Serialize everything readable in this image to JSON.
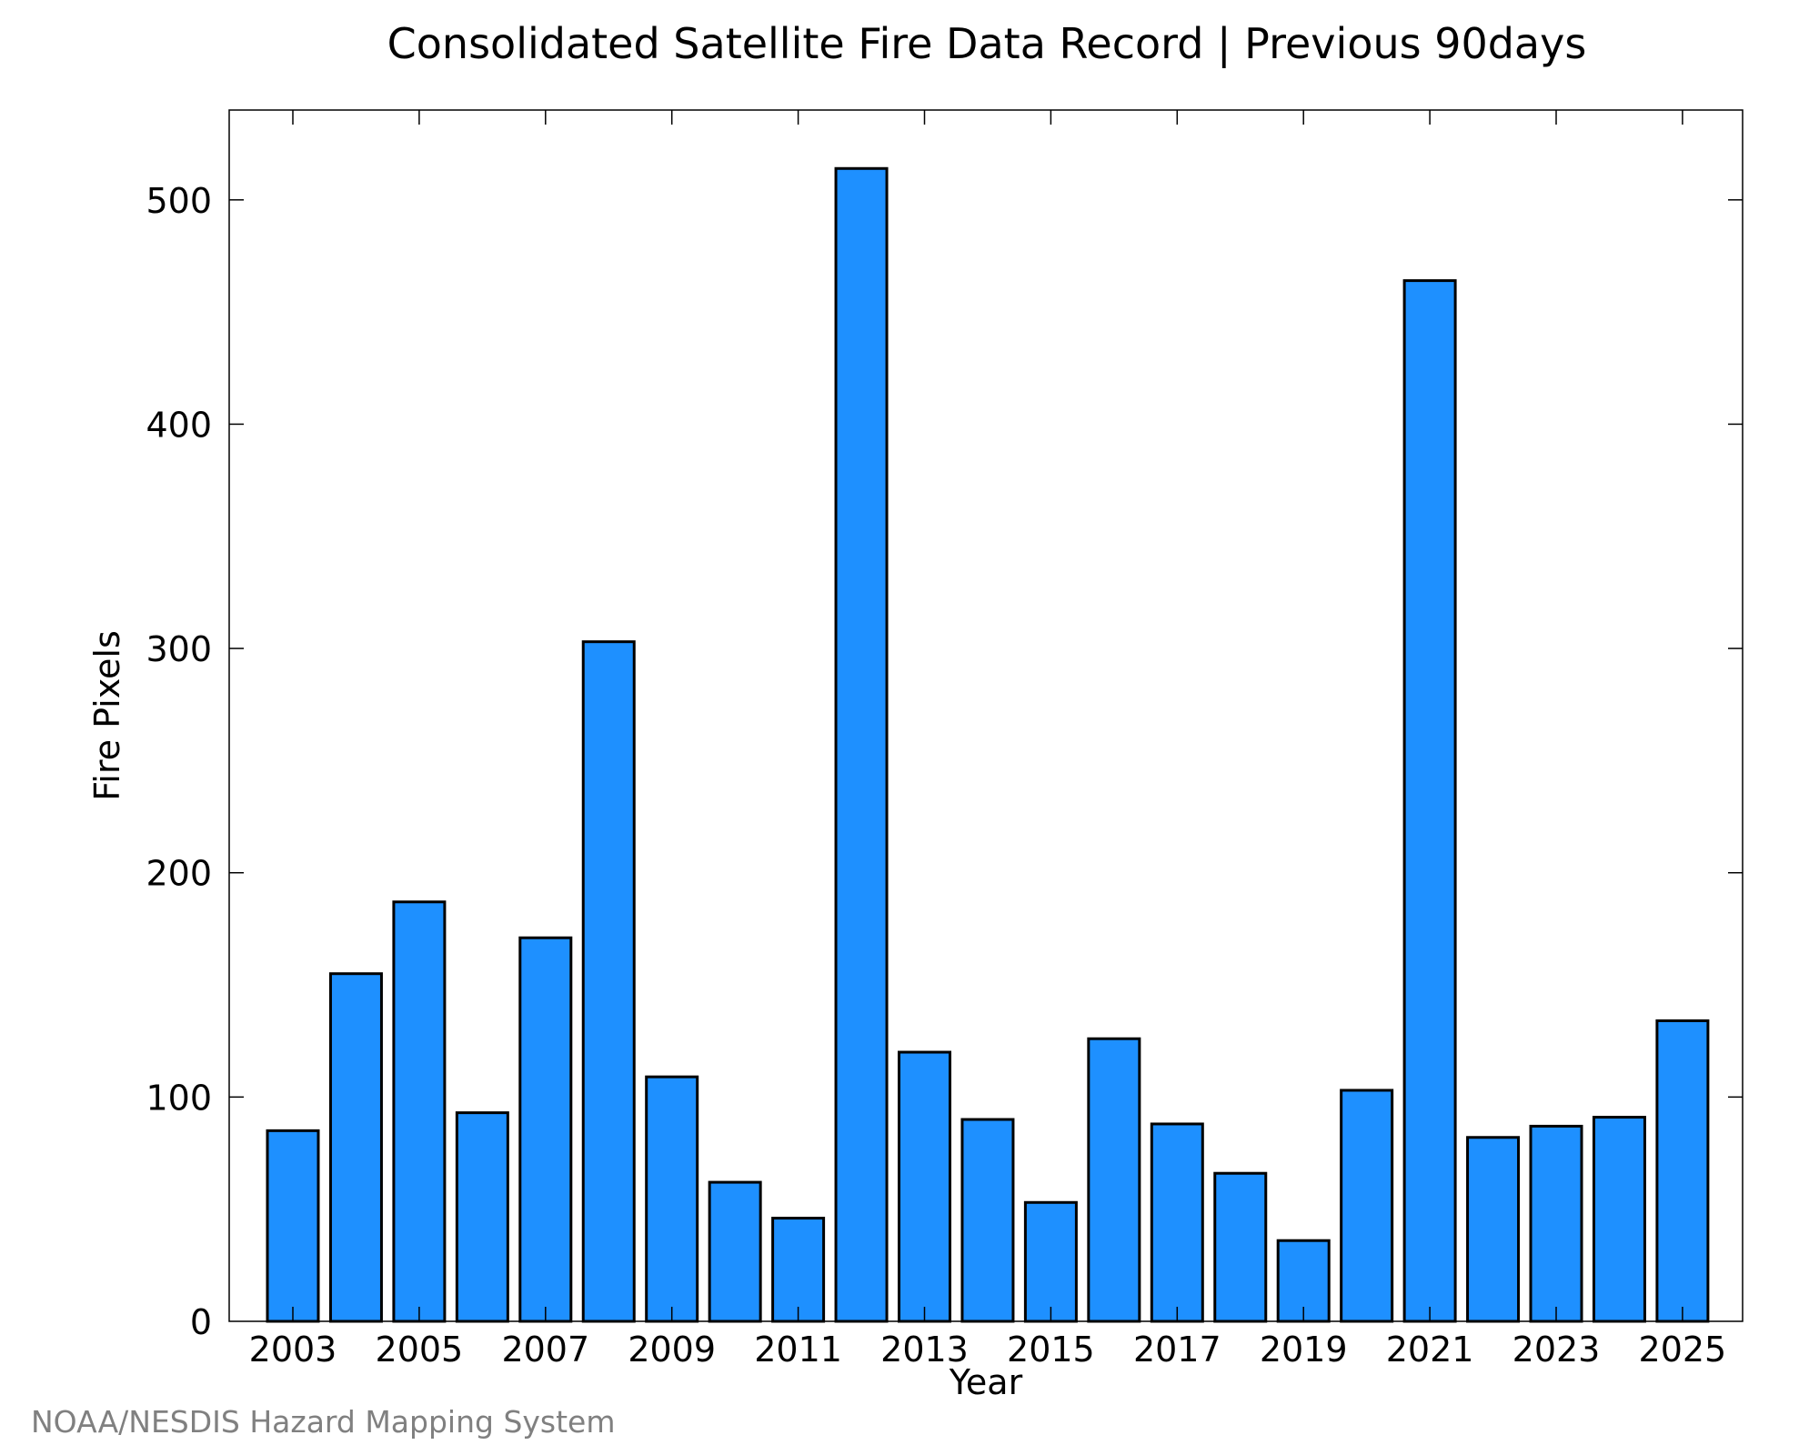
{
  "chart_data": {
    "type": "bar",
    "title": "Consolidated Satellite Fire Data Record | Previous 90days",
    "xlabel": "Year",
    "ylabel": "Fire Pixels",
    "categories": [
      "2003",
      "2004",
      "2005",
      "2006",
      "2007",
      "2008",
      "2009",
      "2010",
      "2011",
      "2012",
      "2013",
      "2014",
      "2015",
      "2016",
      "2017",
      "2018",
      "2019",
      "2020",
      "2021",
      "2022",
      "2023",
      "2024",
      "2025"
    ],
    "values": [
      85,
      155,
      187,
      93,
      171,
      303,
      109,
      62,
      46,
      514,
      120,
      90,
      53,
      126,
      88,
      66,
      36,
      103,
      464,
      82,
      87,
      91,
      134
    ],
    "x_tick_labels": [
      "2003",
      "2005",
      "2007",
      "2009",
      "2011",
      "2013",
      "2015",
      "2017",
      "2019",
      "2021",
      "2023",
      "2025"
    ],
    "y_ticks": [
      0,
      100,
      200,
      300,
      400,
      500
    ],
    "ylim": [
      0,
      540
    ],
    "grid": false,
    "legend": "none"
  },
  "credit": "NOAA/NESDIS Hazard Mapping System",
  "colors": {
    "bar_fill": "#1E90FF",
    "bar_stroke": "#000000",
    "credit_text": "#808080"
  }
}
